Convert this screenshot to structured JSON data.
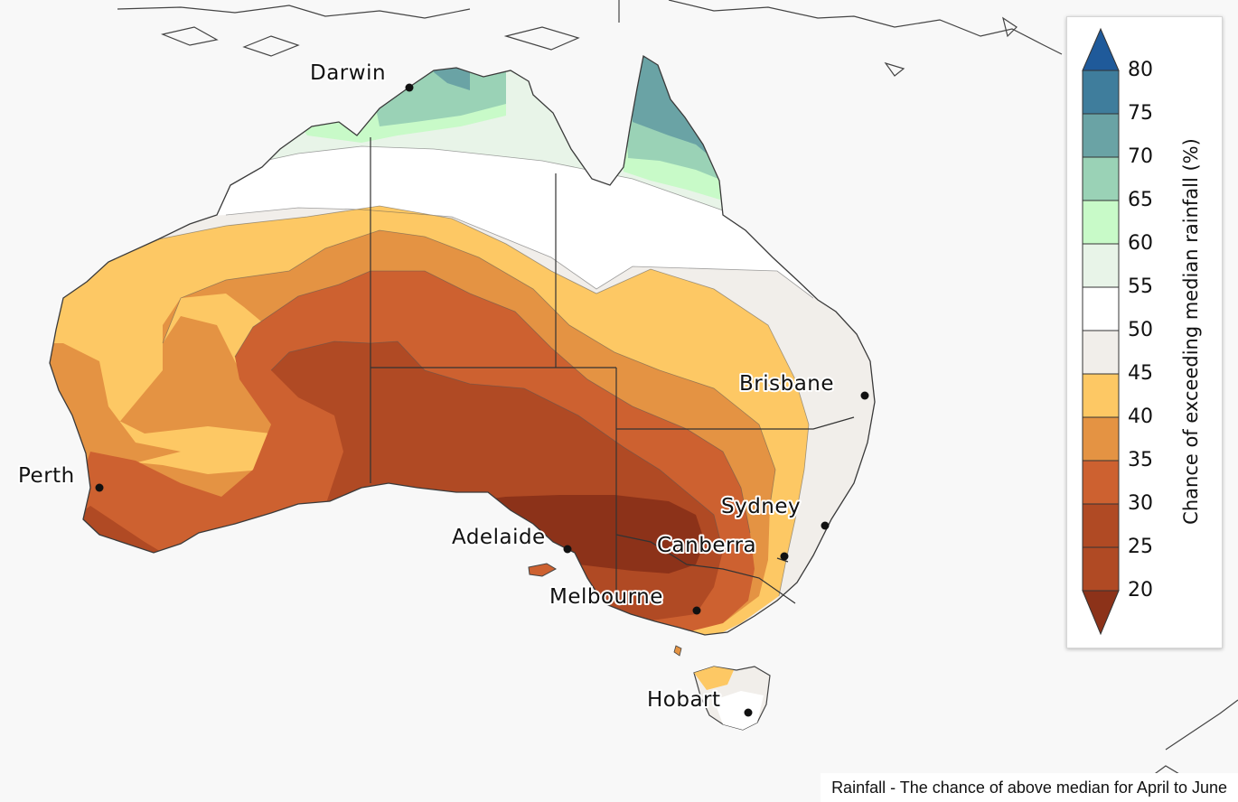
{
  "map": {
    "cities": [
      {
        "name": "Darwin"
      },
      {
        "name": "Brisbane"
      },
      {
        "name": "Perth"
      },
      {
        "name": "Sydney"
      },
      {
        "name": "Adelaide"
      },
      {
        "name": "Canberra"
      },
      {
        "name": "Melbourne"
      },
      {
        "name": "Hobart"
      }
    ]
  },
  "legend": {
    "title": "Chance of exceeding median rainfall (%)",
    "ticks": [
      "80",
      "75",
      "70",
      "65",
      "60",
      "55",
      "50",
      "45",
      "40",
      "35",
      "30",
      "25",
      "20"
    ],
    "colors": {
      "above_75": "#1f5a9a",
      "70_75": "#3f7d9c",
      "65_70": "#6aa3a5",
      "60_65": "#9ad2b6",
      "55_60": "#c8fac8",
      "50_55": "#e8f4e8",
      "45_50": "#ffffff",
      "40_45": "#f1eeea",
      "35_40": "#fdc864",
      "30_35": "#e49343",
      "25_30": "#cd6130",
      "20_25": "#b04a24",
      "below_20": "#8c3219"
    }
  },
  "caption": "Rainfall - The chance of above median for April to June"
}
